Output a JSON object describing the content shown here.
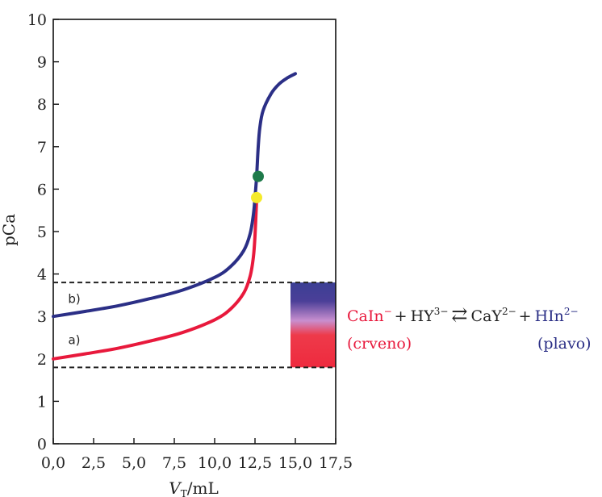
{
  "chart_data": {
    "type": "line",
    "xlabel": "V",
    "xlabel_sub": "T",
    "xlabel_unit": "/mL",
    "ylabel": "pCa",
    "xlim": [
      0,
      17.5
    ],
    "ylim": [
      0,
      10
    ],
    "x_ticks": [
      "0,0",
      "2,5",
      "5,0",
      "7,5",
      "10,0",
      "12,5",
      "15,0",
      "17,5"
    ],
    "y_ticks": [
      "0",
      "1",
      "2",
      "3",
      "4",
      "5",
      "6",
      "7",
      "8",
      "9",
      "10"
    ],
    "series": [
      {
        "name": "b)",
        "color": "#2b2f86",
        "x": [
          0,
          2,
          4,
          6,
          8,
          10,
          11,
          11.8,
          12.2,
          12.4,
          12.5,
          12.6,
          12.7,
          12.8,
          13,
          13.5,
          14,
          14.5,
          15
        ],
        "y": [
          3.0,
          3.12,
          3.25,
          3.42,
          3.62,
          3.92,
          4.18,
          4.55,
          4.95,
          5.4,
          5.8,
          6.3,
          7.0,
          7.45,
          7.85,
          8.25,
          8.48,
          8.62,
          8.72
        ]
      },
      {
        "name": "a)",
        "color": "#e8193c",
        "x": [
          0,
          2,
          4,
          6,
          8,
          10,
          11,
          11.8,
          12.2,
          12.4,
          12.5,
          12.6
        ],
        "y": [
          2.0,
          2.12,
          2.25,
          2.42,
          2.62,
          2.92,
          3.18,
          3.55,
          3.95,
          4.4,
          4.9,
          5.75
        ]
      }
    ],
    "points": [
      {
        "x": 12.7,
        "y": 6.3,
        "color": "#1e7a4a"
      },
      {
        "x": 12.6,
        "y": 5.8,
        "color": "#f5ea2a"
      }
    ],
    "reference_lines": [
      3.8,
      1.8
    ],
    "indicator_band": {
      "x_start": 14.7,
      "x_end": 17.5,
      "y_low": 1.8,
      "y_high": 3.8,
      "top_color": "#3b3f94",
      "bottom_color": "#ee2a3e"
    },
    "equation": {
      "reactant1": "CaIn",
      "reactant1_charge": "−",
      "plus1": "+",
      "reactant2": "HY",
      "reactant2_charge": "3−",
      "arrow": "⇄",
      "product1": "CaY",
      "product1_charge": "2−",
      "plus2": "+",
      "product2": "HIn",
      "product2_charge": "2−",
      "label_left": "(crveno)",
      "label_right": "(plavo)",
      "color_red": "#e8193c",
      "color_blue": "#2b2f86"
    }
  }
}
